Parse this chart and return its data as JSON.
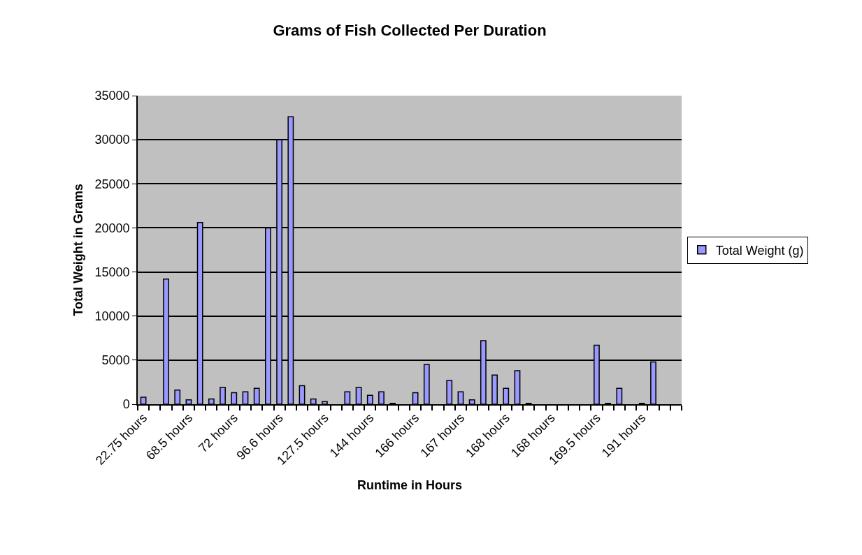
{
  "chart_data": {
    "type": "bar",
    "title": "Grams of Fish Collected Per Duration",
    "xlabel": "Runtime in Hours",
    "ylabel": "Total Weight in Grams",
    "categories": [
      "22.75 hours",
      null,
      null,
      null,
      "68.5 hours",
      null,
      null,
      null,
      "72 hours",
      null,
      null,
      null,
      "96.6 hours",
      null,
      null,
      null,
      "127.5 hours",
      null,
      null,
      null,
      "144 hours",
      null,
      null,
      null,
      "166 hours",
      null,
      null,
      null,
      "167 hours",
      null,
      null,
      null,
      "168 hours",
      null,
      null,
      null,
      "168 hours",
      null,
      null,
      null,
      "169.5 hours",
      null,
      null,
      null,
      "191 hours",
      null,
      null,
      null
    ],
    "series": [
      {
        "name": "Total Weight (g)",
        "color": "#9999ff",
        "values": [
          800,
          null,
          14200,
          1600,
          500,
          20600,
          600,
          1900,
          1300,
          1400,
          1800,
          20000,
          30000,
          32600,
          2100,
          600,
          300,
          null,
          1400,
          1900,
          1000,
          1400,
          100,
          null,
          1300,
          4500,
          null,
          2700,
          1400,
          500,
          7200,
          3300,
          1800,
          3800,
          100,
          null,
          null,
          null,
          null,
          null,
          6700,
          100,
          1800,
          null,
          100,
          4800,
          null,
          null
        ]
      }
    ],
    "ylim": [
      0,
      35000
    ],
    "yticks": [
      0,
      5000,
      10000,
      15000,
      20000,
      25000,
      30000,
      35000
    ],
    "grid": "y",
    "legend": "right"
  }
}
